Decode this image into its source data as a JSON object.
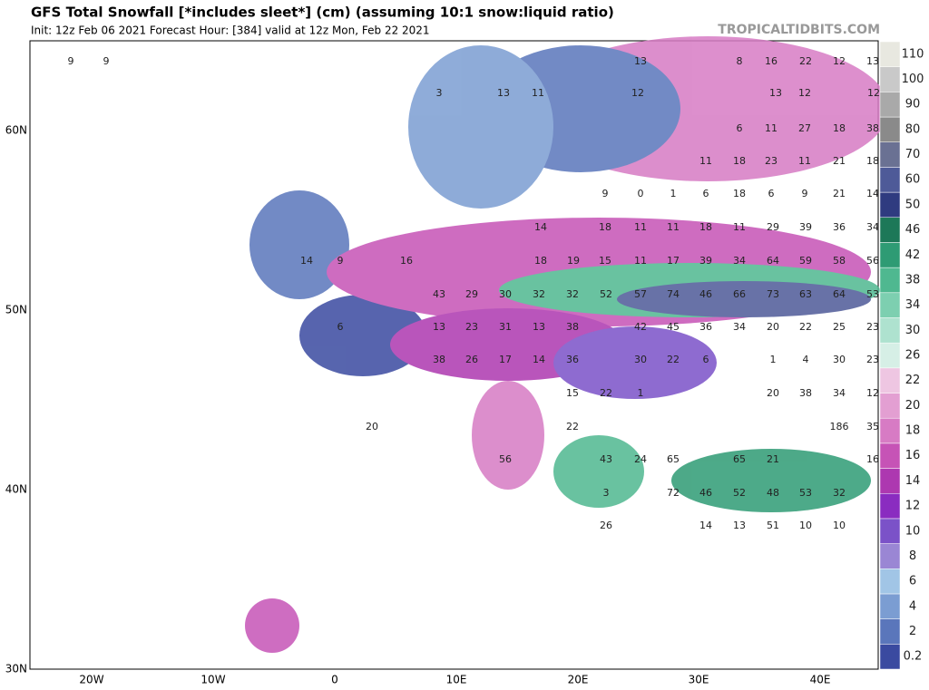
{
  "header": {
    "title": "GFS Total Snowfall [*includes sleet*] (cm) (assuming 10:1 snow:liquid ratio)",
    "subtitle": "Init: 12z Feb 06 2021   Forecast Hour: [384]   valid at 12z Mon, Feb 22 2021",
    "watermark": "TROPICALTIDBITS.COM"
  },
  "axes": {
    "lat_labels": [
      "60N",
      "50N",
      "40N",
      "30N"
    ],
    "lon_labels": [
      "20W",
      "10W",
      "0",
      "10E",
      "20E",
      "30E",
      "40E"
    ]
  },
  "legend": {
    "labels": [
      "0.2",
      "2",
      "4",
      "6",
      "8",
      "10",
      "12",
      "14",
      "16",
      "18",
      "20",
      "22",
      "26",
      "30",
      "34",
      "38",
      "42",
      "46",
      "50",
      "60",
      "70",
      "80",
      "90",
      "100",
      "110"
    ],
    "colors": [
      "#3a4aa0",
      "#5a76bb",
      "#7b9dd2",
      "#a1c5e6",
      "#9a86d4",
      "#7b52c8",
      "#8a2cc0",
      "#ad38b0",
      "#c653b6",
      "#d77bc4",
      "#e39fd2",
      "#eec6e2",
      "#d6efe6",
      "#aee2cf",
      "#7dcfb0",
      "#4fb890",
      "#2e9b74",
      "#1d7858",
      "#2f3b80",
      "#4e5a98",
      "#6a7193",
      "#8a8a8a",
      "#a9a9a9",
      "#c9c9c9",
      "#e8e8e0"
    ]
  },
  "map_labels": [
    "9",
    "9",
    "13",
    "8",
    "16",
    "22",
    "12",
    "13",
    "3",
    "13",
    "11",
    "12",
    "13",
    "12",
    "12",
    "6",
    "11",
    "27",
    "18",
    "38",
    "11",
    "18",
    "23",
    "11",
    "21",
    "18",
    "9",
    "0",
    "1",
    "6",
    "18",
    "6",
    "9",
    "21",
    "14",
    "14",
    "18",
    "11",
    "11",
    "18",
    "11",
    "29",
    "39",
    "36",
    "34",
    "14",
    "9",
    "16",
    "18",
    "19",
    "15",
    "11",
    "17",
    "39",
    "34",
    "64",
    "59",
    "58",
    "56",
    "43",
    "29",
    "30",
    "32",
    "32",
    "52",
    "57",
    "74",
    "46",
    "66",
    "73",
    "63",
    "64",
    "53",
    "6",
    "13",
    "23",
    "31",
    "13",
    "38",
    "42",
    "45",
    "36",
    "34",
    "20",
    "22",
    "25",
    "23",
    "38",
    "26",
    "17",
    "14",
    "36",
    "30",
    "22",
    "6",
    "1",
    "4",
    "30",
    "23",
    "15",
    "22",
    "1",
    "20",
    "38",
    "34",
    "12",
    "20",
    "22",
    "186",
    "35",
    "56",
    "43",
    "24",
    "65",
    "65",
    "21",
    "16",
    "3",
    "72",
    "46",
    "52",
    "48",
    "53",
    "32",
    "26",
    "14",
    "13",
    "51",
    "10",
    "10"
  ]
}
